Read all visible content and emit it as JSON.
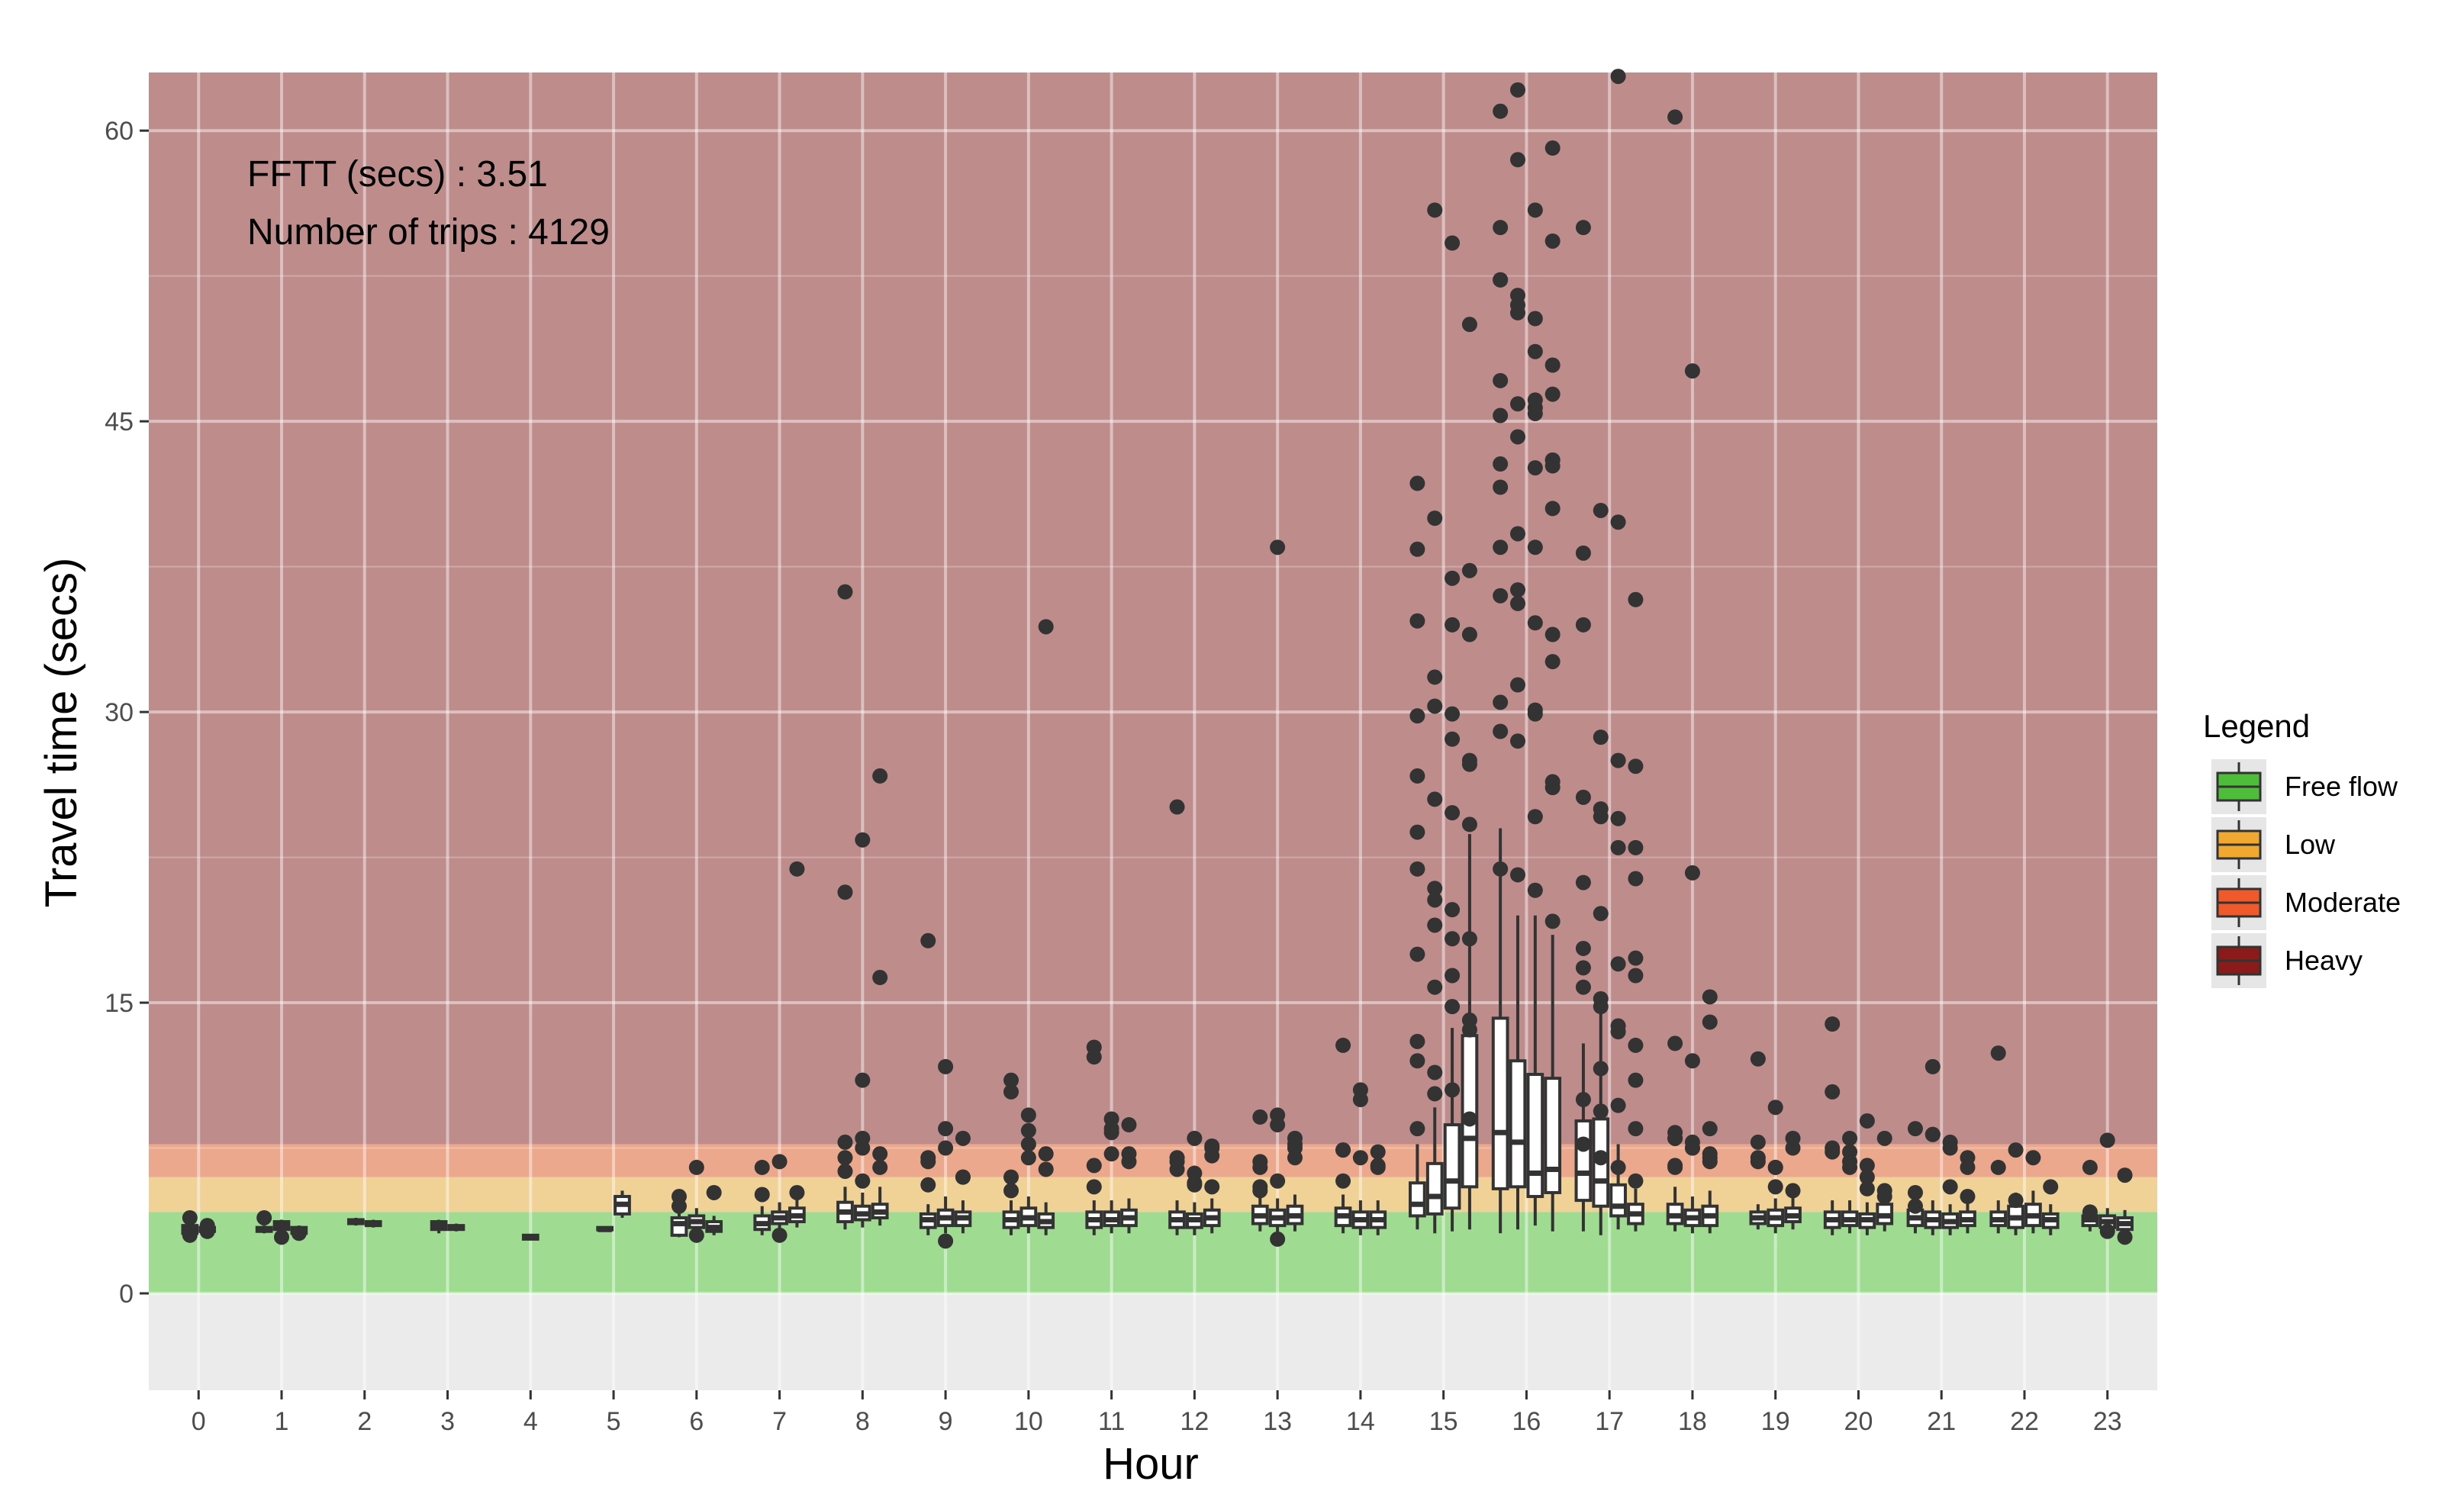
{
  "chart_data": {
    "type": "boxplot",
    "title": "",
    "xlabel": "Hour",
    "ylabel": "Travel time (secs)",
    "ylim": [
      -5,
      63
    ],
    "yticks": [
      0,
      15,
      30,
      45,
      60
    ],
    "categories": [
      "0",
      "1",
      "2",
      "3",
      "4",
      "5",
      "6",
      "7",
      "8",
      "9",
      "10",
      "11",
      "12",
      "13",
      "14",
      "15",
      "16",
      "17",
      "18",
      "19",
      "20",
      "21",
      "22",
      "23"
    ],
    "annotations": [
      "FFTT (secs) : 3.51",
      "Number of trips : 4129"
    ],
    "legend": {
      "title": "Legend",
      "placement": "right",
      "items": [
        {
          "label": "Free flow",
          "color": "#4dbd3a"
        },
        {
          "label": "Low",
          "color": "#f0a830"
        },
        {
          "label": "Moderate",
          "color": "#f05a2a"
        },
        {
          "label": "Heavy",
          "color": "#8b1a1a"
        }
      ]
    },
    "bands": [
      {
        "name": "Free flow",
        "from": 0,
        "to": 4.2,
        "color": "#9fdc92"
      },
      {
        "name": "Low",
        "from": 4.2,
        "to": 6.0,
        "color": "#f0d296"
      },
      {
        "name": "Moderate",
        "from": 6.0,
        "to": 7.7,
        "color": "#eba88c"
      },
      {
        "name": "Heavy",
        "from": 7.7,
        "to": 63,
        "color": "#bf8c8c"
      }
    ],
    "groups": [
      {
        "hour": 0,
        "boxes": [
          {
            "q1": 3.1,
            "med": 3.3,
            "q3": 3.5,
            "lo": 2.9,
            "hi": 3.8
          },
          {
            "q1": 3.2,
            "med": 3.3,
            "q3": 3.4,
            "lo": 3.1,
            "hi": 3.5
          }
        ],
        "outliers": [
          3.9,
          3.5,
          3.0,
          3.2
        ]
      },
      {
        "hour": 1,
        "boxes": [
          {
            "q1": 3.2,
            "med": 3.3,
            "q3": 3.4,
            "lo": 3.1,
            "hi": 3.5
          },
          {
            "q1": 3.3,
            "med": 3.5,
            "q3": 3.7,
            "lo": 3.2,
            "hi": 3.8
          },
          {
            "q1": 3.1,
            "med": 3.3,
            "q3": 3.4,
            "lo": 3.0,
            "hi": 3.5
          }
        ],
        "outliers": [
          3.9,
          2.9,
          3.1
        ]
      },
      {
        "hour": 2,
        "boxes": [
          {
            "q1": 3.6,
            "med": 3.7,
            "q3": 3.8,
            "lo": 3.5,
            "hi": 3.9
          },
          {
            "q1": 3.5,
            "med": 3.6,
            "q3": 3.7,
            "lo": 3.4,
            "hi": 3.8
          }
        ],
        "outliers": []
      },
      {
        "hour": 3,
        "boxes": [
          {
            "q1": 3.3,
            "med": 3.5,
            "q3": 3.7,
            "lo": 3.1,
            "hi": 3.8
          },
          {
            "q1": 3.3,
            "med": 3.4,
            "q3": 3.5,
            "lo": 3.2,
            "hi": 3.6
          }
        ],
        "outliers": []
      },
      {
        "hour": 4,
        "boxes": [
          {
            "q1": 2.8,
            "med": 2.9,
            "q3": 3.0,
            "lo": 2.8,
            "hi": 3.0
          }
        ],
        "outliers": []
      },
      {
        "hour": 5,
        "boxes": [
          {
            "q1": 3.3,
            "med": 3.3,
            "q3": 3.4,
            "lo": 3.3,
            "hi": 3.4
          },
          {
            "q1": 4.1,
            "med": 4.6,
            "q3": 5.0,
            "lo": 3.9,
            "hi": 5.3
          }
        ],
        "outliers": []
      },
      {
        "hour": 6,
        "boxes": [
          {
            "q1": 3.0,
            "med": 3.6,
            "q3": 3.9,
            "lo": 2.9,
            "hi": 4.3
          },
          {
            "q1": 3.4,
            "med": 3.7,
            "q3": 4.0,
            "lo": 3.1,
            "hi": 4.4
          },
          {
            "q1": 3.2,
            "med": 3.4,
            "q3": 3.7,
            "lo": 3.0,
            "hi": 4.0
          }
        ],
        "outliers": [
          5.0,
          6.5,
          5.2,
          4.5,
          3.0
        ]
      },
      {
        "hour": 7,
        "boxes": [
          {
            "q1": 3.3,
            "med": 3.6,
            "q3": 4.0,
            "lo": 3.0,
            "hi": 4.5
          },
          {
            "q1": 3.6,
            "med": 3.9,
            "q3": 4.2,
            "lo": 3.3,
            "hi": 4.7
          },
          {
            "q1": 3.7,
            "med": 4.0,
            "q3": 4.4,
            "lo": 3.4,
            "hi": 5.0
          }
        ],
        "outliers": [
          5.1,
          6.8,
          21.9,
          6.5,
          3.0,
          5.2
        ]
      },
      {
        "hour": 8,
        "boxes": [
          {
            "q1": 3.7,
            "med": 4.2,
            "q3": 4.7,
            "lo": 3.3,
            "hi": 5.5
          },
          {
            "q1": 3.8,
            "med": 4.1,
            "q3": 4.5,
            "lo": 3.4,
            "hi": 5.2
          },
          {
            "q1": 3.9,
            "med": 4.2,
            "q3": 4.6,
            "lo": 3.5,
            "hi": 5.5
          }
        ],
        "outliers": [
          7.0,
          7.5,
          26.7,
          36.2,
          23.4,
          16.3,
          7.8,
          8.0,
          6.5,
          20.7,
          11.0,
          7.2,
          6.3,
          5.8
        ]
      },
      {
        "hour": 9,
        "boxes": [
          {
            "q1": 3.4,
            "med": 3.8,
            "q3": 4.1,
            "lo": 3.0,
            "hi": 4.6
          },
          {
            "q1": 3.5,
            "med": 3.9,
            "q3": 4.3,
            "lo": 3.1,
            "hi": 5.0
          },
          {
            "q1": 3.5,
            "med": 3.9,
            "q3": 4.2,
            "lo": 3.1,
            "hi": 4.8
          }
        ],
        "outliers": [
          6.8,
          8.5,
          8.0,
          18.2,
          7.5,
          6.0,
          5.6,
          11.7,
          6.0,
          7.0,
          2.7
        ]
      },
      {
        "hour": 10,
        "boxes": [
          {
            "q1": 3.4,
            "med": 3.8,
            "q3": 4.2,
            "lo": 3.0,
            "hi": 4.8
          },
          {
            "q1": 3.5,
            "med": 3.9,
            "q3": 4.4,
            "lo": 3.1,
            "hi": 5.0
          },
          {
            "q1": 3.4,
            "med": 3.7,
            "q3": 4.1,
            "lo": 3.0,
            "hi": 4.7
          }
        ],
        "outliers": [
          10.4,
          7.7,
          7.2,
          6.0,
          8.4,
          34.4,
          11.0,
          9.2,
          6.4,
          5.3,
          7.0
        ]
      },
      {
        "hour": 11,
        "boxes": [
          {
            "q1": 3.4,
            "med": 3.8,
            "q3": 4.2,
            "lo": 3.0,
            "hi": 4.8
          },
          {
            "q1": 3.5,
            "med": 3.8,
            "q3": 4.2,
            "lo": 3.1,
            "hi": 4.8
          },
          {
            "q1": 3.5,
            "med": 3.9,
            "q3": 4.3,
            "lo": 3.1,
            "hi": 4.9
          }
        ],
        "outliers": [
          12.2,
          9.0,
          8.7,
          6.6,
          8.5,
          6.8,
          12.7,
          8.3,
          7.2,
          5.5,
          7.2
        ]
      },
      {
        "hour": 12,
        "boxes": [
          {
            "q1": 3.4,
            "med": 3.8,
            "q3": 4.2,
            "lo": 3.0,
            "hi": 4.8
          },
          {
            "q1": 3.4,
            "med": 3.8,
            "q3": 4.1,
            "lo": 3.0,
            "hi": 4.7
          },
          {
            "q1": 3.5,
            "med": 3.9,
            "q3": 4.3,
            "lo": 3.1,
            "hi": 4.9
          }
        ],
        "outliers": [
          25.1,
          8.0,
          7.1,
          6.4,
          5.7,
          7.5,
          6.8,
          5.6,
          7.6,
          7.0,
          6.2,
          5.5
        ]
      },
      {
        "hour": 13,
        "boxes": [
          {
            "q1": 3.6,
            "med": 4.0,
            "q3": 4.5,
            "lo": 3.2,
            "hi": 5.2
          },
          {
            "q1": 3.5,
            "med": 3.9,
            "q3": 4.3,
            "lo": 3.1,
            "hi": 4.9
          },
          {
            "q1": 3.6,
            "med": 4.0,
            "q3": 4.5,
            "lo": 3.2,
            "hi": 5.1
          }
        ],
        "outliers": [
          9.1,
          8.7,
          7.7,
          6.8,
          9.2,
          7.5,
          5.5,
          38.5,
          7.0,
          5.3,
          2.8,
          8.0,
          6.5,
          5.8
        ]
      },
      {
        "hour": 14,
        "boxes": [
          {
            "q1": 3.5,
            "med": 4.0,
            "q3": 4.4,
            "lo": 3.1,
            "hi": 5.1
          },
          {
            "q1": 3.4,
            "med": 3.8,
            "q3": 4.2,
            "lo": 3.0,
            "hi": 4.8
          },
          {
            "q1": 3.4,
            "med": 3.8,
            "q3": 4.2,
            "lo": 3.0,
            "hi": 4.8
          }
        ],
        "outliers": [
          7.4,
          7.0,
          6.5,
          5.8,
          10.5,
          7.3,
          12.8,
          10.0,
          6.6,
          7.4
        ]
      },
      {
        "hour": 15,
        "boxes": [
          {
            "q1": 4.0,
            "med": 4.6,
            "q3": 5.7,
            "lo": 3.3,
            "hi": 7.7
          },
          {
            "q1": 4.1,
            "med": 5.0,
            "q3": 6.7,
            "lo": 3.1,
            "hi": 9.6
          },
          {
            "q1": 4.4,
            "med": 5.8,
            "q3": 8.7,
            "lo": 3.2,
            "hi": 13.7
          },
          {
            "q1": 5.5,
            "med": 8.0,
            "q3": 13.3,
            "lo": 3.3,
            "hi": 23.7
          }
        ],
        "outliers": [
          38.4,
          31.8,
          28.6,
          27.5,
          23.8,
          19.0,
          18.3,
          14.1,
          13.0,
          11.4,
          10.5,
          9.0,
          8.5,
          55.9,
          36.9,
          24.2,
          21.9,
          20.9,
          19.8,
          18.3,
          17.5,
          15.8,
          14.8,
          13.6,
          12.0,
          10.3,
          54.2,
          50.0,
          41.8,
          40.0,
          34.5,
          34.0,
          29.8,
          20.3,
          16.4,
          37.3,
          34.7,
          30.3,
          29.9,
          27.3,
          26.7,
          25.5,
          24.8
        ]
      },
      {
        "hour": 16,
        "boxes": [
          {
            "q1": 5.4,
            "med": 8.3,
            "q3": 14.2,
            "lo": 3.1,
            "hi": 24.0
          },
          {
            "q1": 5.5,
            "med": 7.8,
            "q3": 12.0,
            "lo": 3.3,
            "hi": 19.5
          },
          {
            "q1": 5.0,
            "med": 6.2,
            "q3": 11.3,
            "lo": 3.5,
            "hi": 19.5
          },
          {
            "q1": 5.2,
            "med": 6.4,
            "q3": 11.1,
            "lo": 3.2,
            "hi": 18.5
          }
        ],
        "outliers": [
          61.0,
          58.5,
          55.9,
          54.3,
          52.3,
          50.6,
          48.6,
          46.4,
          45.3,
          44.2,
          42.6,
          40.5,
          38.5,
          36.3,
          34.6,
          32.6,
          30.5,
          28.5,
          24.6,
          59.1,
          52.3,
          51.5,
          50.3,
          47.9,
          47.1,
          45.9,
          45.4,
          43.0,
          36.0,
          31.4,
          29.9,
          26.4,
          21.9,
          62.1,
          45.7,
          43.0,
          42.8,
          35.6,
          30.1,
          26.1,
          55.0,
          51.0,
          46.1,
          42.7,
          41.6,
          39.2,
          38.5,
          34.0,
          29.0,
          21.6,
          20.8,
          19.2
        ]
      },
      {
        "hour": 17,
        "boxes": [
          {
            "q1": 4.8,
            "med": 6.2,
            "q3": 8.9,
            "lo": 3.2,
            "hi": 12.9
          },
          {
            "q1": 4.5,
            "med": 5.8,
            "q3": 9.0,
            "lo": 3.0,
            "hi": 15.5
          },
          {
            "q1": 4.0,
            "med": 4.5,
            "q3": 5.6,
            "lo": 3.3,
            "hi": 7.7
          },
          {
            "q1": 3.6,
            "med": 4.1,
            "q3": 4.6,
            "lo": 3.2,
            "hi": 5.4
          }
        ],
        "outliers": [
          38.2,
          25.0,
          24.5,
          23.0,
          21.2,
          19.6,
          17.0,
          16.4,
          15.8,
          14.8,
          13.8,
          12.8,
          55.0,
          40.4,
          39.8,
          35.8,
          34.5,
          28.7,
          27.5,
          27.2,
          25.6,
          24.6,
          23.0,
          21.4,
          17.8,
          15.2,
          13.5,
          11.0,
          10.0,
          9.4,
          62.8,
          17.3,
          16.8,
          11.6,
          9.7,
          8.5,
          7.7,
          7.0,
          6.5,
          5.8
        ]
      },
      {
        "hour": 18,
        "boxes": [
          {
            "q1": 3.6,
            "med": 4.0,
            "q3": 4.6,
            "lo": 3.2,
            "hi": 5.5
          },
          {
            "q1": 3.5,
            "med": 3.9,
            "q3": 4.3,
            "lo": 3.1,
            "hi": 5.0
          },
          {
            "q1": 3.5,
            "med": 4.0,
            "q3": 4.5,
            "lo": 3.1,
            "hi": 5.3
          }
        ],
        "outliers": [
          12.9,
          12.0,
          8.5,
          8.0,
          7.5,
          6.8,
          60.7,
          47.6,
          15.3,
          8.0,
          7.5,
          7.0,
          6.5,
          21.7,
          14.0,
          8.3,
          7.8,
          7.2,
          6.6
        ]
      },
      {
        "hour": 19,
        "boxes": [
          {
            "q1": 3.6,
            "med": 3.9,
            "q3": 4.2,
            "lo": 3.3,
            "hi": 4.6
          },
          {
            "q1": 3.5,
            "med": 3.9,
            "q3": 4.3,
            "lo": 3.1,
            "hi": 4.9
          },
          {
            "q1": 3.7,
            "med": 4.0,
            "q3": 4.4,
            "lo": 3.3,
            "hi": 5.0
          }
        ],
        "outliers": [
          7.8,
          6.5,
          5.3,
          12.1,
          9.6,
          8.0,
          7.0,
          6.5,
          7.5,
          6.8,
          5.5
        ]
      },
      {
        "hour": 20,
        "boxes": [
          {
            "q1": 3.4,
            "med": 3.8,
            "q3": 4.2,
            "lo": 3.0,
            "hi": 4.8
          },
          {
            "q1": 3.5,
            "med": 3.8,
            "q3": 4.2,
            "lo": 3.1,
            "hi": 4.8
          },
          {
            "q1": 3.4,
            "med": 3.8,
            "q3": 4.1,
            "lo": 3.0,
            "hi": 4.7
          },
          {
            "q1": 3.6,
            "med": 4.0,
            "q3": 4.6,
            "lo": 3.2,
            "hi": 5.3
          }
        ],
        "outliers": [
          10.4,
          8.0,
          8.9,
          8.0,
          7.5,
          6.5,
          5.4,
          5.0,
          7.3,
          6.8,
          6.0,
          5.3,
          13.9,
          7.3,
          6.6
        ]
      },
      {
        "hour": 21,
        "boxes": [
          {
            "q1": 3.5,
            "med": 3.9,
            "q3": 4.3,
            "lo": 3.1,
            "hi": 4.9
          },
          {
            "q1": 3.4,
            "med": 3.8,
            "q3": 4.2,
            "lo": 3.0,
            "hi": 4.8
          },
          {
            "q1": 3.4,
            "med": 3.7,
            "q3": 4.1,
            "lo": 3.0,
            "hi": 4.6
          },
          {
            "q1": 3.5,
            "med": 3.8,
            "q3": 4.2,
            "lo": 3.1,
            "hi": 4.8
          }
        ],
        "outliers": [
          8.5,
          8.2,
          7.5,
          6.5,
          5.2,
          8.2,
          7.8,
          5.0,
          4.5,
          11.7,
          5.5,
          7.0
        ]
      },
      {
        "hour": 22,
        "boxes": [
          {
            "q1": 3.5,
            "med": 3.8,
            "q3": 4.2,
            "lo": 3.1,
            "hi": 4.8
          },
          {
            "q1": 3.4,
            "med": 3.9,
            "q3": 4.5,
            "lo": 3.0,
            "hi": 5.2
          },
          {
            "q1": 3.5,
            "med": 4.0,
            "q3": 4.6,
            "lo": 3.1,
            "hi": 5.3
          },
          {
            "q1": 3.4,
            "med": 3.8,
            "q3": 4.1,
            "lo": 3.0,
            "hi": 4.6
          }
        ],
        "outliers": [
          12.4,
          7.4,
          7.0,
          5.5,
          6.5,
          4.8
        ]
      },
      {
        "hour": 23,
        "boxes": [
          {
            "q1": 3.5,
            "med": 3.8,
            "q3": 4.0,
            "lo": 3.2,
            "hi": 4.4
          },
          {
            "q1": 3.4,
            "med": 3.7,
            "q3": 4.0,
            "lo": 3.1,
            "hi": 4.4
          },
          {
            "q1": 3.3,
            "med": 3.6,
            "q3": 3.9,
            "lo": 3.0,
            "hi": 4.3
          }
        ],
        "outliers": [
          6.5,
          7.9,
          6.1,
          4.2,
          3.2,
          2.9
        ]
      }
    ]
  }
}
